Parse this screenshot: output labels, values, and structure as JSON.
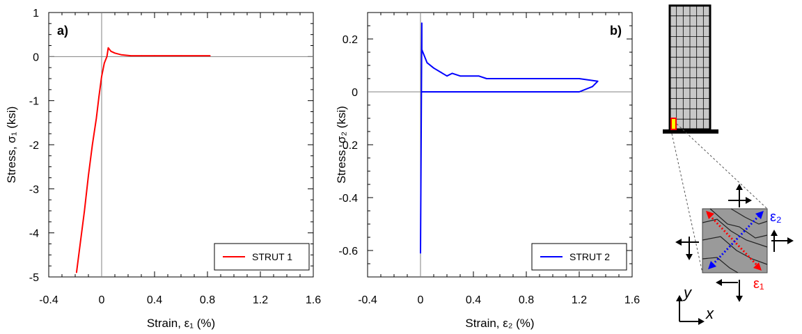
{
  "chart_data": [
    {
      "type": "line",
      "panel_label": "a)",
      "xlabel": "Strain, ε₁ (%)",
      "ylabel": "Stress, σ₁ (ksi)",
      "xlim": [
        -0.4,
        1.6
      ],
      "ylim": [
        -5,
        1
      ],
      "x_ticks": [
        "-0.4",
        "0",
        "0.4",
        "0.8",
        "1.2",
        "1.6"
      ],
      "y_ticks": [
        "1",
        "0",
        "-1",
        "-2",
        "-3",
        "-4",
        "-5"
      ],
      "grid": false,
      "zero_lines": true,
      "legend_position": "bottom-right",
      "series": [
        {
          "name": "STRUT 1",
          "color": "#ff0000",
          "x": [
            -0.19,
            -0.16,
            -0.13,
            -0.1,
            -0.07,
            -0.04,
            -0.02,
            0,
            0.02,
            0.04,
            0.05,
            0.07,
            0.1,
            0.15,
            0.22,
            0.3,
            0.4,
            0.6,
            0.82
          ],
          "y": [
            -4.9,
            -4.2,
            -3.5,
            -2.7,
            -2.0,
            -1.4,
            -0.9,
            -0.45,
            -0.15,
            0.0,
            0.2,
            0.12,
            0.08,
            0.04,
            0.02,
            0.02,
            0.02,
            0.02,
            0.02
          ]
        }
      ]
    },
    {
      "type": "line",
      "panel_label": "b)",
      "xlabel": "Strain, ε₂ (%)",
      "ylabel": "Stress, σ₂ (ksi)",
      "xlim": [
        -0.4,
        1.6
      ],
      "ylim": [
        -0.7,
        0.3
      ],
      "x_ticks": [
        "-0.4",
        "0",
        "0.4",
        "0.8",
        "1.2",
        "1.6"
      ],
      "y_ticks": [
        "0.2",
        "0",
        "-0.2",
        "-0.4",
        "-0.6"
      ],
      "grid": false,
      "zero_lines": true,
      "legend_position": "bottom-right",
      "series": [
        {
          "name": "STRUT 2",
          "color": "#0000ff",
          "x": [
            0.0,
            0.01,
            0.01,
            0.05,
            0.1,
            0.2,
            0.24,
            0.3,
            0.44,
            0.5,
            0.6,
            0.72,
            0.85,
            1.0,
            1.2,
            1.34,
            1.3,
            1.2,
            1.0,
            0.85,
            0.7,
            0.5,
            0.3,
            0.1,
            0.01
          ],
          "y": [
            -0.61,
            0.26,
            0.16,
            0.11,
            0.09,
            0.06,
            0.07,
            0.06,
            0.06,
            0.05,
            0.05,
            0.05,
            0.05,
            0.05,
            0.05,
            0.04,
            0.02,
            0.0,
            0.0,
            0.0,
            0.0,
            0.0,
            0.0,
            0.0,
            0.0
          ]
        }
      ]
    }
  ],
  "schematic": {
    "eps2_label": "ε₂",
    "eps1_label": "ε₁",
    "axis_y": "y",
    "axis_x": "x",
    "colors": {
      "wall_fill": "#c8c8c8",
      "element_fill": "#ffff00",
      "element_border": "#ff0000",
      "eps1": "#ff0000",
      "eps2": "#0000ff",
      "panel_fill": "#9a9a9a"
    }
  }
}
